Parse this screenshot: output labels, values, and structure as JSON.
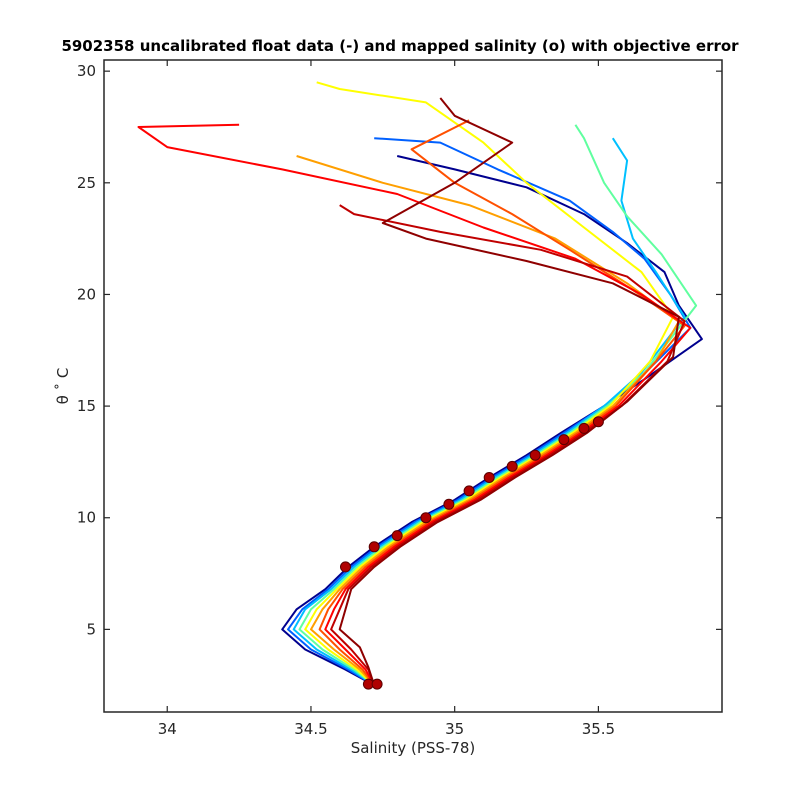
{
  "chart_data": {
    "type": "line",
    "title": "5902358 uncalibrated float data (-) and mapped salinity (o) with objective error",
    "xlabel": "Salinity (PSS-78)",
    "ylabel": "θ ˚ C",
    "xlim": [
      33.78,
      35.93
    ],
    "ylim": [
      1.3,
      30.5
    ],
    "xticks": [
      34,
      34.5,
      35,
      35.5
    ],
    "xtick_labels": [
      "34",
      "34.5",
      "35",
      "35.5"
    ],
    "yticks": [
      5,
      10,
      15,
      20,
      25,
      30
    ],
    "ytick_labels": [
      "5",
      "10",
      "15",
      "20",
      "25",
      "30"
    ],
    "grid": false,
    "colormap": "jet (profile order, early = blue, late = dark red)",
    "colors": [
      "#00008f",
      "#0040ff",
      "#00bfff",
      "#40ff bf",
      "#bfff40",
      "#ffff00",
      "#ffbf00",
      "#ff8000",
      "#ff4000",
      "#ff0000",
      "#bf0000",
      "#8f0000"
    ],
    "series": [
      {
        "color": "#00008f",
        "profile": [
          [
            34.72,
            2.5
          ],
          [
            34.62,
            3.2
          ],
          [
            34.48,
            4.1
          ],
          [
            34.4,
            5.0
          ],
          [
            34.45,
            5.9
          ],
          [
            34.55,
            6.8
          ],
          [
            34.63,
            7.8
          ],
          [
            34.72,
            8.7
          ],
          [
            34.85,
            9.8
          ],
          [
            35.0,
            10.8
          ],
          [
            35.12,
            11.8
          ],
          [
            35.25,
            12.8
          ],
          [
            35.37,
            13.8
          ],
          [
            35.52,
            15.0
          ],
          [
            35.66,
            16.2
          ],
          [
            35.86,
            18.0
          ],
          [
            35.78,
            19.5
          ],
          [
            35.73,
            21.0
          ],
          [
            35.6,
            22.3
          ],
          [
            35.45,
            23.6
          ],
          [
            35.25,
            24.8
          ],
          [
            35.0,
            25.6
          ],
          [
            34.8,
            26.2
          ]
        ]
      },
      {
        "color": "#0060ff",
        "profile": [
          [
            34.72,
            2.5
          ],
          [
            34.63,
            3.2
          ],
          [
            34.5,
            4.1
          ],
          [
            34.42,
            5.0
          ],
          [
            34.47,
            5.9
          ],
          [
            34.56,
            6.8
          ],
          [
            34.64,
            7.8
          ],
          [
            34.73,
            8.7
          ],
          [
            34.86,
            9.8
          ],
          [
            35.01,
            10.8
          ],
          [
            35.13,
            11.8
          ],
          [
            35.26,
            12.8
          ],
          [
            35.38,
            13.8
          ],
          [
            35.52,
            15.0
          ],
          [
            35.64,
            16.2
          ],
          [
            35.82,
            18.5
          ],
          [
            35.75,
            20.0
          ],
          [
            35.66,
            21.6
          ],
          [
            35.55,
            22.8
          ],
          [
            35.4,
            24.2
          ],
          [
            35.15,
            25.6
          ],
          [
            34.95,
            26.8
          ],
          [
            34.72,
            27.0
          ]
        ]
      },
      {
        "color": "#00c0ff",
        "profile": [
          [
            34.72,
            2.5
          ],
          [
            34.64,
            3.2
          ],
          [
            34.52,
            4.1
          ],
          [
            34.44,
            5.0
          ],
          [
            34.48,
            5.9
          ],
          [
            34.57,
            6.8
          ],
          [
            34.65,
            7.8
          ],
          [
            34.74,
            8.7
          ],
          [
            34.87,
            9.8
          ],
          [
            35.02,
            10.8
          ],
          [
            35.14,
            11.8
          ],
          [
            35.27,
            12.8
          ],
          [
            35.39,
            13.8
          ],
          [
            35.52,
            15.0
          ],
          [
            35.65,
            16.5
          ],
          [
            35.8,
            19.0
          ],
          [
            35.7,
            21.0
          ],
          [
            35.62,
            22.5
          ],
          [
            35.58,
            24.2
          ],
          [
            35.6,
            26.0
          ],
          [
            35.55,
            27.0
          ]
        ]
      },
      {
        "color": "#60ff9f",
        "profile": [
          [
            34.72,
            2.5
          ],
          [
            34.65,
            3.2
          ],
          [
            34.54,
            4.1
          ],
          [
            34.46,
            5.0
          ],
          [
            34.5,
            5.9
          ],
          [
            34.58,
            6.8
          ],
          [
            34.66,
            7.8
          ],
          [
            34.75,
            8.7
          ],
          [
            34.88,
            9.8
          ],
          [
            35.03,
            10.8
          ],
          [
            35.15,
            11.8
          ],
          [
            35.28,
            12.8
          ],
          [
            35.4,
            13.8
          ],
          [
            35.53,
            15.0
          ],
          [
            35.66,
            16.5
          ],
          [
            35.84,
            19.5
          ],
          [
            35.72,
            21.8
          ],
          [
            35.6,
            23.5
          ],
          [
            35.52,
            25.0
          ],
          [
            35.45,
            27.0
          ],
          [
            35.42,
            27.6
          ]
        ]
      },
      {
        "color": "#ffff00",
        "profile": [
          [
            34.72,
            2.5
          ],
          [
            34.66,
            3.2
          ],
          [
            34.56,
            4.1
          ],
          [
            34.48,
            5.0
          ],
          [
            34.52,
            5.9
          ],
          [
            34.59,
            6.8
          ],
          [
            34.67,
            7.8
          ],
          [
            34.76,
            8.7
          ],
          [
            34.89,
            9.8
          ],
          [
            35.04,
            10.8
          ],
          [
            35.16,
            11.8
          ],
          [
            35.29,
            12.8
          ],
          [
            35.41,
            13.8
          ],
          [
            35.54,
            15.0
          ],
          [
            35.68,
            17.0
          ],
          [
            35.76,
            19.0
          ],
          [
            35.65,
            21.0
          ],
          [
            35.45,
            23.0
          ],
          [
            35.25,
            25.0
          ],
          [
            35.1,
            26.8
          ],
          [
            34.9,
            28.6
          ],
          [
            34.6,
            29.2
          ],
          [
            34.52,
            29.5
          ]
        ]
      },
      {
        "color": "#ff9f00",
        "profile": [
          [
            34.72,
            2.5
          ],
          [
            34.67,
            3.2
          ],
          [
            34.58,
            4.1
          ],
          [
            34.5,
            5.0
          ],
          [
            34.54,
            5.9
          ],
          [
            34.6,
            6.8
          ],
          [
            34.68,
            7.8
          ],
          [
            34.77,
            8.7
          ],
          [
            34.9,
            9.8
          ],
          [
            35.05,
            10.8
          ],
          [
            35.17,
            11.8
          ],
          [
            35.3,
            12.8
          ],
          [
            35.42,
            13.8
          ],
          [
            35.55,
            15.0
          ],
          [
            35.7,
            17.0
          ],
          [
            35.78,
            18.8
          ],
          [
            35.6,
            20.5
          ],
          [
            35.35,
            22.5
          ],
          [
            35.05,
            24.0
          ],
          [
            34.75,
            25.0
          ],
          [
            34.45,
            26.2
          ]
        ]
      },
      {
        "color": "#ff5000",
        "profile": [
          [
            34.72,
            2.5
          ],
          [
            34.68,
            3.2
          ],
          [
            34.6,
            4.1
          ],
          [
            34.53,
            5.0
          ],
          [
            34.56,
            5.9
          ],
          [
            34.61,
            6.8
          ],
          [
            34.69,
            7.8
          ],
          [
            34.78,
            8.7
          ],
          [
            34.91,
            9.8
          ],
          [
            35.06,
            10.8
          ],
          [
            35.18,
            11.8
          ],
          [
            35.31,
            12.8
          ],
          [
            35.43,
            13.8
          ],
          [
            35.56,
            15.0
          ],
          [
            35.7,
            17.0
          ],
          [
            35.8,
            18.6
          ],
          [
            35.62,
            20.2
          ],
          [
            35.4,
            22.0
          ],
          [
            35.2,
            23.6
          ],
          [
            35.0,
            25.0
          ],
          [
            34.85,
            26.5
          ],
          [
            35.05,
            27.8
          ]
        ]
      },
      {
        "color": "#ff0000",
        "profile": [
          [
            34.72,
            2.5
          ],
          [
            34.69,
            3.2
          ],
          [
            34.62,
            4.1
          ],
          [
            34.55,
            5.0
          ],
          [
            34.58,
            5.9
          ],
          [
            34.62,
            6.8
          ],
          [
            34.7,
            7.8
          ],
          [
            34.79,
            8.7
          ],
          [
            34.92,
            9.8
          ],
          [
            35.07,
            10.8
          ],
          [
            35.19,
            11.8
          ],
          [
            35.32,
            12.8
          ],
          [
            35.44,
            13.8
          ],
          [
            35.57,
            15.0
          ],
          [
            35.72,
            17.0
          ],
          [
            35.82,
            18.5
          ],
          [
            35.65,
            20.0
          ],
          [
            35.42,
            21.6
          ],
          [
            35.1,
            23.0
          ],
          [
            34.8,
            24.5
          ],
          [
            34.4,
            25.6
          ],
          [
            34.0,
            26.6
          ],
          [
            33.9,
            27.5
          ],
          [
            34.25,
            27.6
          ]
        ]
      },
      {
        "color": "#c00000",
        "profile": [
          [
            34.72,
            2.5
          ],
          [
            34.7,
            3.2
          ],
          [
            34.64,
            4.1
          ],
          [
            34.57,
            5.0
          ],
          [
            34.6,
            5.9
          ],
          [
            34.63,
            6.8
          ],
          [
            34.71,
            7.8
          ],
          [
            34.8,
            8.7
          ],
          [
            34.93,
            9.8
          ],
          [
            35.08,
            10.8
          ],
          [
            35.2,
            11.8
          ],
          [
            35.33,
            12.8
          ],
          [
            35.45,
            13.8
          ],
          [
            35.58,
            15.0
          ],
          [
            35.74,
            17.0
          ],
          [
            35.8,
            18.8
          ],
          [
            35.6,
            20.8
          ],
          [
            35.3,
            22.0
          ],
          [
            34.95,
            22.8
          ],
          [
            34.65,
            23.6
          ],
          [
            34.6,
            24.0
          ]
        ]
      },
      {
        "color": "#8f0000",
        "profile": [
          [
            34.72,
            2.5
          ],
          [
            34.7,
            3.3
          ],
          [
            34.67,
            4.2
          ],
          [
            34.6,
            5.0
          ],
          [
            34.62,
            5.9
          ],
          [
            34.64,
            6.8
          ],
          [
            34.72,
            7.8
          ],
          [
            34.81,
            8.7
          ],
          [
            34.94,
            9.8
          ],
          [
            35.09,
            10.8
          ],
          [
            35.21,
            11.8
          ],
          [
            35.34,
            12.8
          ],
          [
            35.46,
            13.8
          ],
          [
            35.6,
            15.2
          ],
          [
            35.76,
            17.2
          ],
          [
            35.78,
            19.0
          ],
          [
            35.55,
            20.5
          ],
          [
            35.25,
            21.5
          ],
          [
            34.9,
            22.5
          ],
          [
            34.75,
            23.2
          ],
          [
            35.0,
            25.0
          ],
          [
            35.2,
            26.8
          ],
          [
            35.0,
            28.0
          ],
          [
            34.95,
            28.8
          ]
        ]
      }
    ],
    "mapped_salinity_points": [
      [
        34.7,
        2.55
      ],
      [
        34.73,
        2.55
      ],
      [
        34.62,
        7.8
      ],
      [
        34.72,
        8.7
      ],
      [
        34.8,
        9.2
      ],
      [
        34.9,
        10.0
      ],
      [
        34.98,
        10.6
      ],
      [
        35.05,
        11.2
      ],
      [
        35.12,
        11.8
      ],
      [
        35.2,
        12.3
      ],
      [
        35.28,
        12.8
      ],
      [
        35.38,
        13.5
      ],
      [
        35.45,
        14.0
      ],
      [
        35.5,
        14.3
      ]
    ]
  }
}
